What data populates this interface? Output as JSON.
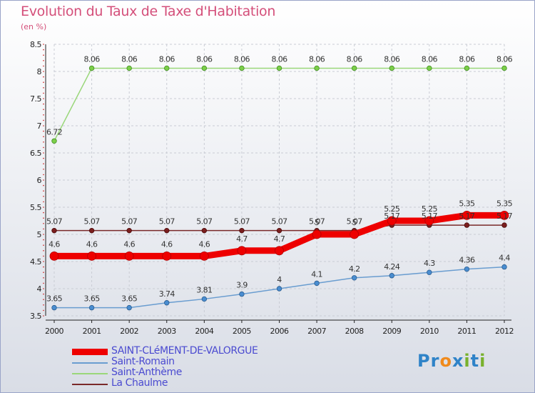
{
  "title": "Evolution du Taux de Taxe d'Habitation",
  "subtitle": "(en %)",
  "logo": {
    "letters": [
      "P",
      "r",
      "o",
      "x",
      "i",
      "t",
      "i"
    ],
    "colors": [
      "#2f83c8",
      "#2f83c8",
      "#f08a1c",
      "#2f83c8",
      "#79b12d",
      "#2f83c8",
      "#79b12d"
    ]
  },
  "chart_data": {
    "type": "line",
    "title": "Evolution du Taux de Taxe d'Habitation",
    "ylabel": "(en %)",
    "xlabel": "",
    "x": [
      "2000",
      "2001",
      "2002",
      "2003",
      "2004",
      "2005",
      "2006",
      "2007",
      "2008",
      "2009",
      "2010",
      "2011",
      "2012"
    ],
    "ylim": [
      3.5,
      8.5
    ],
    "yticks": [
      3.5,
      4,
      4.5,
      5,
      5.5,
      6,
      6.5,
      7,
      7.5,
      8,
      8.5
    ],
    "grid": true,
    "legend_position": "bottom-left",
    "series": [
      {
        "name": "SAINT-CLéMENT-DE-VALORGUE",
        "color": "#ee0000",
        "values": [
          4.6,
          4.6,
          4.6,
          4.6,
          4.6,
          4.7,
          4.7,
          5,
          5,
          5.25,
          5.25,
          5.35,
          5.35
        ],
        "labels": [
          "4.6",
          "4.6",
          "4.6",
          "4.6",
          "4.6",
          "4.7",
          "4.7",
          "5",
          "5",
          "5.25",
          "5.25",
          "5.35",
          "5.35"
        ]
      },
      {
        "name": "Saint-Romain",
        "color": "#6a9dd0",
        "values": [
          3.65,
          3.65,
          3.65,
          3.74,
          3.81,
          3.9,
          4,
          4.1,
          4.2,
          4.24,
          4.3,
          4.36,
          4.4
        ],
        "labels": [
          "3.65",
          "3.65",
          "3.65",
          "3.74",
          "3.81",
          "3.9",
          "4",
          "4.1",
          "4.2",
          "4.24",
          "4.3",
          "4.36",
          "4.4"
        ]
      },
      {
        "name": "Saint-Anthème",
        "color": "#9ad77a",
        "values": [
          6.72,
          8.06,
          8.06,
          8.06,
          8.06,
          8.06,
          8.06,
          8.06,
          8.06,
          8.06,
          8.06,
          8.06,
          8.06
        ],
        "labels": [
          "6.72",
          "8.06",
          "8.06",
          "8.06",
          "8.06",
          "8.06",
          "8.06",
          "8.06",
          "8.06",
          "8.06",
          "8.06",
          "8.06",
          "8.06"
        ]
      },
      {
        "name": "La Chaulme",
        "color": "#7a2a2a",
        "values": [
          5.07,
          5.07,
          5.07,
          5.07,
          5.07,
          5.07,
          5.07,
          5.07,
          5.07,
          5.17,
          5.17,
          5.17,
          5.17
        ],
        "labels": [
          "5.07",
          "5.07",
          "5.07",
          "5.07",
          "5.07",
          "5.07",
          "5.07",
          "5.07",
          "5.07",
          "5.17",
          "5.17",
          "5.17",
          "5.17"
        ]
      }
    ]
  }
}
